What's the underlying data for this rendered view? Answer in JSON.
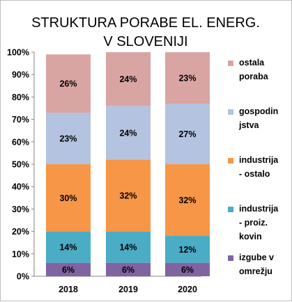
{
  "chart_data": {
    "type": "bar",
    "stacked": true,
    "title_lines": [
      "STRUKTURA PORABE EL. ENERG.",
      "V SLOVENIJI"
    ],
    "categories": [
      "2018",
      "2019",
      "2020"
    ],
    "y_ticks": [
      "0%",
      "10%",
      "20%",
      "30%",
      "40%",
      "50%",
      "60%",
      "70%",
      "80%",
      "90%",
      "100%"
    ],
    "ylim": [
      0,
      100
    ],
    "grid": false,
    "legend_position": "right",
    "series": [
      {
        "name": "izgube v omrežju",
        "legend_lines": [
          "izgube v",
          "omrežju"
        ],
        "color": "#8064a2",
        "values": [
          6,
          6,
          6
        ],
        "labels": [
          "6%",
          "6%",
          "6%"
        ]
      },
      {
        "name": "industrija - proiz. kovin",
        "legend_lines": [
          "industrija",
          "- proiz.",
          "kovin"
        ],
        "color": "#4bacc6",
        "values": [
          14,
          14,
          12
        ],
        "labels": [
          "14%",
          "14%",
          "12%"
        ]
      },
      {
        "name": "industrija - ostalo",
        "legend_lines": [
          "industrija",
          "- ostalo"
        ],
        "color": "#f79646",
        "values": [
          30,
          32,
          32
        ],
        "labels": [
          "30%",
          "32%",
          "32%"
        ]
      },
      {
        "name": "gospodinjstva",
        "legend_lines": [
          "gospodin",
          "jstva"
        ],
        "color": "#b3c3e0",
        "values": [
          23,
          24,
          27
        ],
        "labels": [
          "23%",
          "24%",
          "27%"
        ]
      },
      {
        "name": "ostala poraba",
        "legend_lines": [
          "ostala",
          "poraba"
        ],
        "color": "#d9a5a3",
        "values": [
          26,
          24,
          23
        ],
        "labels": [
          "26%",
          "24%",
          "23%"
        ]
      }
    ]
  }
}
